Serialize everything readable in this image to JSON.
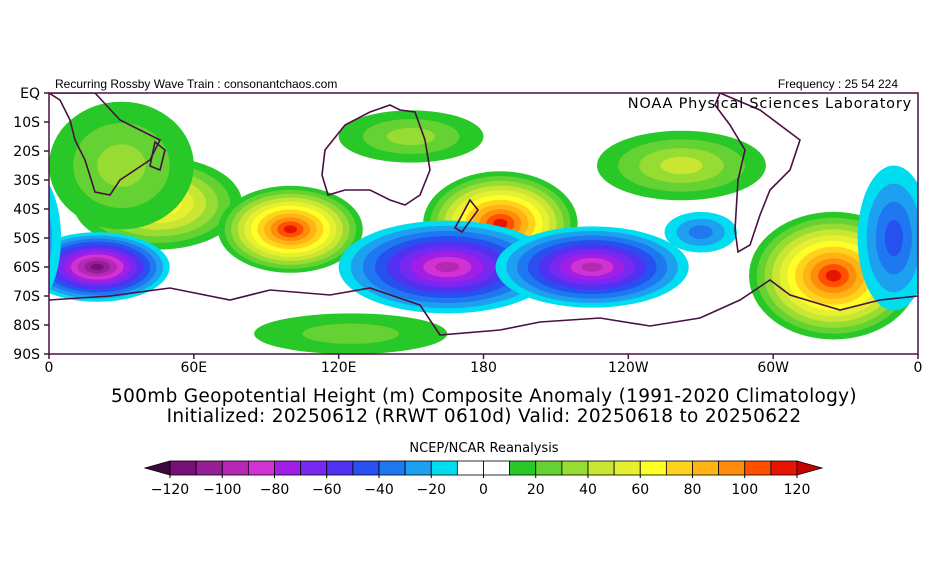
{
  "chart_data": {
    "type": "anomaly-map",
    "header_left": "Recurring Rossby Wave Train : consonantchaos.com",
    "header_right": "Frequency : 25 54 224",
    "credit": "NOAA Physical Sciences Laboratory",
    "title": "500mb Geopotential Height (m) Composite Anomaly (1991-2020 Climatology)",
    "subtitle": "Initialized: 20250612 (RRWT 0610d) Valid: 20250618 to 20250622",
    "colorbar_title": "NCEP/NCAR Reanalysis",
    "xlim": [
      0,
      360
    ],
    "ylim": [
      -90,
      0
    ],
    "xticks": [
      0,
      {
        "value": 60,
        "label": "60E"
      },
      {
        "value": 120,
        "label": "120E"
      },
      180,
      {
        "value": 240,
        "label": "120W"
      },
      {
        "value": 300,
        "label": "60W"
      },
      {
        "value": 360,
        "label": "0"
      }
    ],
    "yticks": [
      {
        "value": 0,
        "label": "EQ"
      },
      {
        "value": -10,
        "label": "10S"
      },
      {
        "value": -20,
        "label": "20S"
      },
      {
        "value": -30,
        "label": "30S"
      },
      {
        "value": -40,
        "label": "40S"
      },
      {
        "value": -50,
        "label": "50S"
      },
      {
        "value": -60,
        "label": "60S"
      },
      {
        "value": -70,
        "label": "70S"
      },
      {
        "value": -80,
        "label": "80S"
      },
      {
        "value": -90,
        "label": "90S"
      }
    ],
    "colorbar_ticks": [
      -120,
      -100,
      -80,
      -60,
      -40,
      -20,
      0,
      20,
      40,
      60,
      80,
      100,
      120
    ],
    "colorbar_lim": [
      -120,
      120
    ],
    "colorbar_step": 10,
    "colors": [
      "#780f78",
      "#961e96",
      "#b428b4",
      "#d232d2",
      "#a01ee6",
      "#7828f0",
      "#5032f0",
      "#2850f0",
      "#1e78f0",
      "#1ea0f0",
      "#00dcf0",
      "#ffffff",
      "#ffffff",
      "#28c828",
      "#64d232",
      "#96dc32",
      "#c8e632",
      "#e6f032",
      "#ffff28",
      "#ffd21e",
      "#ffb414",
      "#ff8c0a",
      "#ff5000",
      "#e61400"
    ],
    "under_color": "#3c0a3c",
    "over_color": "#c80000",
    "anomalies": [
      {
        "lon": 45,
        "lat": -38,
        "value": 70,
        "extent": [
          35,
          16
        ]
      },
      {
        "lon": 100,
        "lat": -47,
        "value": 110,
        "extent": [
          30,
          15
        ]
      },
      {
        "lon": 187,
        "lat": -45,
        "value": 110,
        "extent": [
          32,
          18
        ]
      },
      {
        "lon": 325,
        "lat": -63,
        "value": 110,
        "extent": [
          35,
          22
        ]
      },
      {
        "lon": 150,
        "lat": -15,
        "value": 30,
        "extent": [
          30,
          9
        ]
      },
      {
        "lon": 262,
        "lat": -25,
        "value": 40,
        "extent": [
          35,
          12
        ]
      },
      {
        "lon": 30,
        "lat": -25,
        "value": 30,
        "extent": [
          30,
          22
        ]
      },
      {
        "lon": 125,
        "lat": -83,
        "value": 20,
        "extent": [
          40,
          7
        ]
      },
      {
        "lon": 20,
        "lat": -60,
        "value": -110,
        "extent": [
          30,
          12
        ]
      },
      {
        "lon": 165,
        "lat": -60,
        "value": -90,
        "extent": [
          45,
          16
        ]
      },
      {
        "lon": 225,
        "lat": -60,
        "value": -90,
        "extent": [
          40,
          14
        ]
      },
      {
        "lon": 350,
        "lat": -50,
        "value": -40,
        "extent": [
          15,
          25
        ]
      },
      {
        "lon": 270,
        "lat": -48,
        "value": -30,
        "extent": [
          15,
          7
        ]
      }
    ]
  }
}
